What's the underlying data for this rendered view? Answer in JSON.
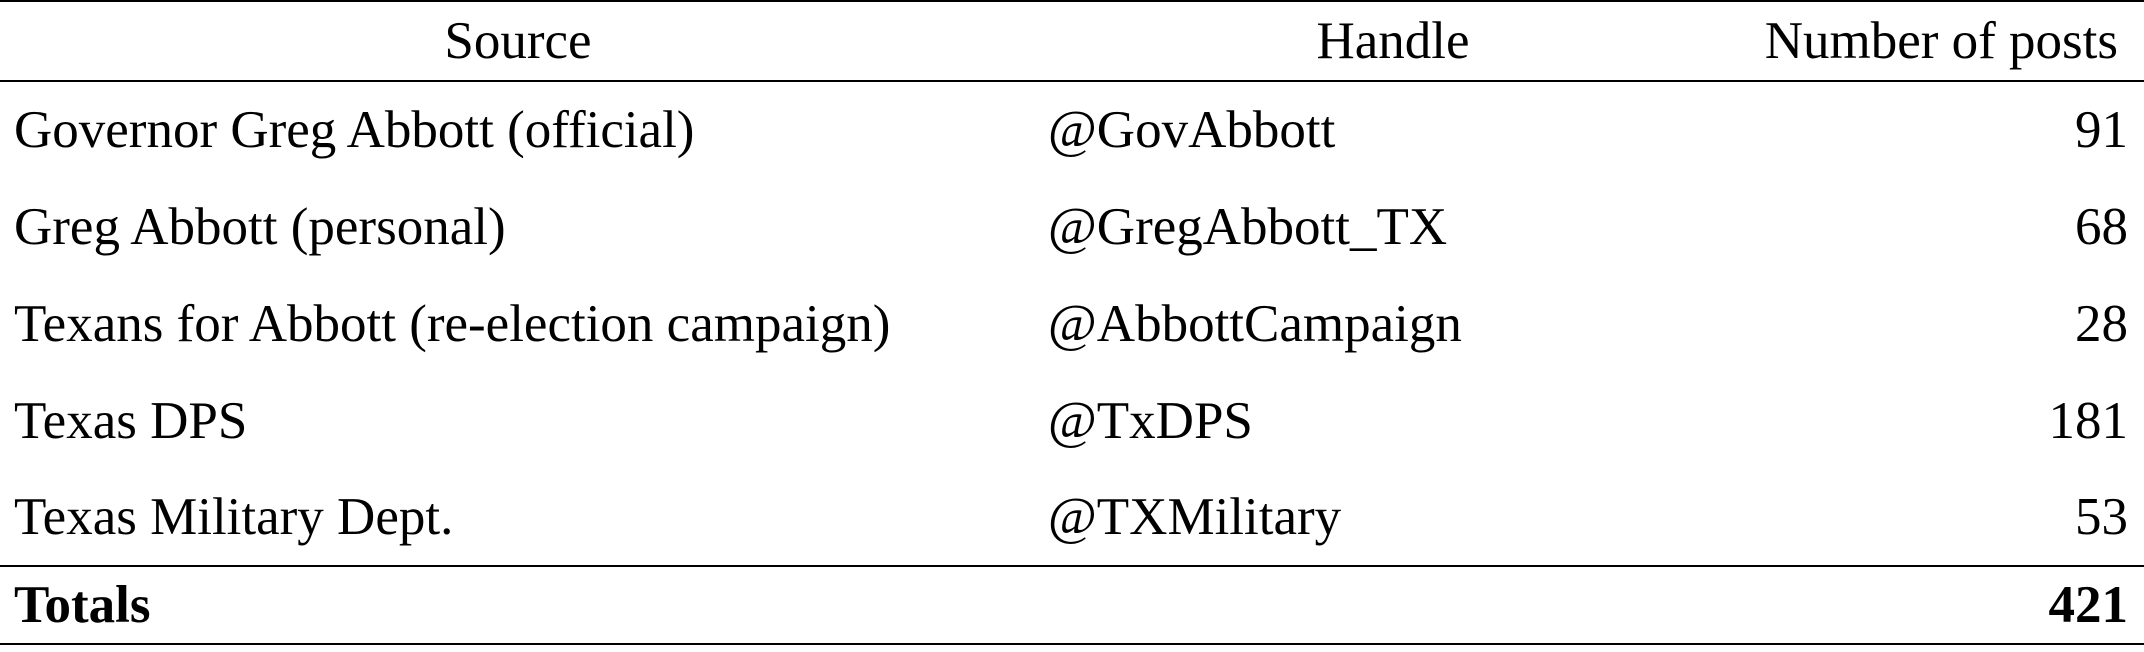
{
  "table": {
    "headers": {
      "source": "Source",
      "handle": "Handle",
      "posts": "Number of posts"
    },
    "rows": [
      {
        "source": "Governor Greg Abbott (official)",
        "handle": "@GovAbbott",
        "posts": "91"
      },
      {
        "source": "Greg Abbott (personal)",
        "handle": "@GregAbbott_TX",
        "posts": "68"
      },
      {
        "source": "Texans for Abbott (re-election campaign)",
        "handle": "@AbbottCampaign",
        "posts": "28"
      },
      {
        "source": "Texas DPS",
        "handle": "@TxDPS",
        "posts": "181"
      },
      {
        "source": "Texas Military Dept.",
        "handle": "@TXMilitary",
        "posts": "53"
      }
    ],
    "totals": {
      "label": "Totals",
      "handle": "",
      "posts": "421"
    }
  }
}
